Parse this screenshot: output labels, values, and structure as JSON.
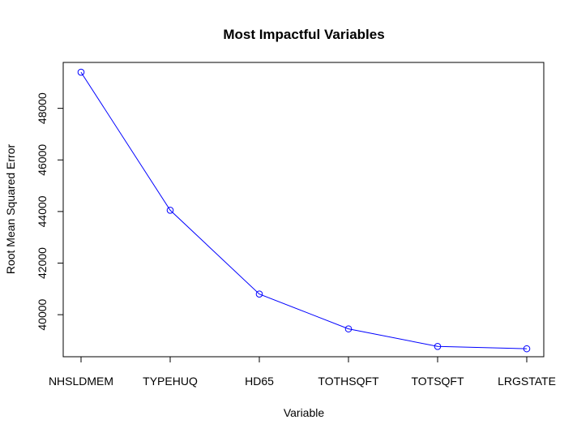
{
  "chart_data": {
    "type": "line",
    "title": "Most Impactful Variables",
    "xlabel": "Variable",
    "ylabel": "Root Mean Squared Error",
    "categories": [
      "NHSLDMEM",
      "TYPEHUQ",
      "HD65",
      "TOTHSQFT",
      "TOTSQFT",
      "LRGSTATE"
    ],
    "values": [
      49400,
      44050,
      40800,
      39450,
      38770,
      38680
    ],
    "ylim": [
      38370,
      49780
    ],
    "yticks": [
      40000,
      42000,
      44000,
      46000,
      48000
    ],
    "series_color": "#0000ff",
    "marker": "open-circle",
    "grid": false,
    "legend": "none"
  }
}
